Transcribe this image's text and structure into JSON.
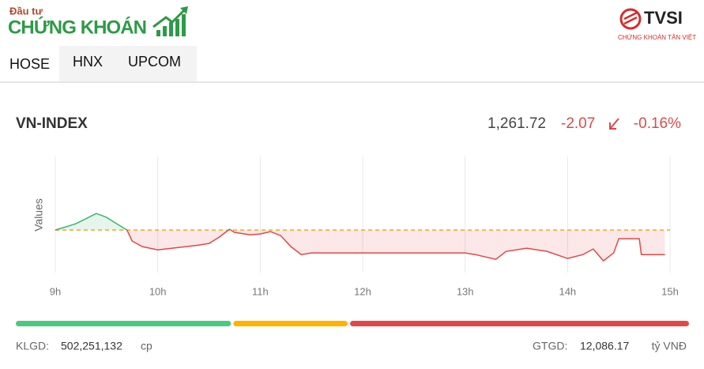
{
  "logo": {
    "small": "Đầu tư",
    "main": "CHỨNG KHOÁN"
  },
  "broker": {
    "name": "TVSI",
    "tagline": "CHỨNG KHOÁN TÂN VIỆT"
  },
  "tabs": [
    "HOSE",
    "HNX",
    "UPCOM"
  ],
  "index": {
    "name": "VN-INDEX",
    "value": "1,261.72",
    "change": "-2.07",
    "change_pct": "-0.16%"
  },
  "chart_data": {
    "type": "line",
    "y_label": "Values",
    "x": [
      9.0,
      9.2,
      9.4,
      9.5,
      9.6,
      9.7,
      9.75,
      9.85,
      10.0,
      10.2,
      10.4,
      10.5,
      10.6,
      10.7,
      10.75,
      10.9,
      11.0,
      11.1,
      11.2,
      11.3,
      11.4,
      11.5,
      13.0,
      13.1,
      13.3,
      13.4,
      13.6,
      13.8,
      14.0,
      14.15,
      14.25,
      14.35,
      14.45,
      14.5,
      14.7,
      14.72,
      14.95
    ],
    "series": [
      {
        "name": "VN-INDEX",
        "values": [
          1263.79,
          1264.32,
          1265.19,
          1264.86,
          1264.32,
          1263.79,
          1262.86,
          1262.39,
          1262.12,
          1262.32,
          1262.52,
          1262.66,
          1263.19,
          1263.86,
          1263.59,
          1263.39,
          1263.46,
          1263.66,
          1263.32,
          1262.39,
          1261.72,
          1261.86,
          1261.86,
          1261.72,
          1261.32,
          1261.99,
          1262.26,
          1261.99,
          1261.39,
          1261.72,
          1262.19,
          1261.19,
          1261.86,
          1263.06,
          1263.06,
          1261.72,
          1261.72
        ]
      }
    ],
    "reference": 1263.79,
    "up_color": "#3cb46e",
    "down_color": "#e04848",
    "reference_color": "#f5a623",
    "xlim": [
      9,
      15
    ],
    "ylim": [
      1260.2,
      1270
    ],
    "xticks": [
      {
        "value": 9,
        "label": "9h"
      },
      {
        "value": 10,
        "label": "10h"
      },
      {
        "value": 11,
        "label": "11h"
      },
      {
        "value": 12,
        "label": "12h"
      },
      {
        "value": 13,
        "label": "13h"
      },
      {
        "value": 14,
        "label": "14h"
      },
      {
        "value": 15,
        "label": "15h"
      }
    ],
    "grid": true
  },
  "breadth": {
    "values": [
      160,
      85,
      252
    ],
    "colors": [
      "#4cc97f",
      "#ffb300",
      "#e04848"
    ]
  },
  "footer": {
    "volume_label": "KLGD:",
    "volume": "502,251,132",
    "volume_unit": "cp",
    "value_label": "GTGD:",
    "value": "12,086.17",
    "value_unit": "tỷ VNĐ"
  }
}
